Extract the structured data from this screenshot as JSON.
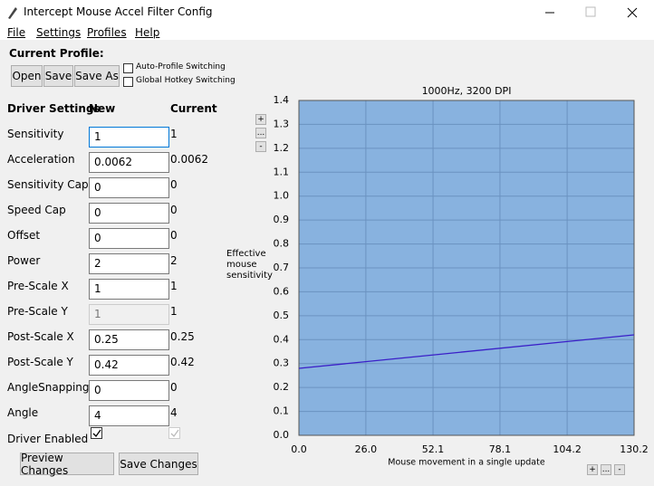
{
  "window": {
    "title": "Intercept Mouse Accel Filter Config"
  },
  "menu": [
    "File",
    "Settings",
    "Profiles",
    "Help"
  ],
  "profile": {
    "label": "Current Profile:",
    "buttons": [
      "Open",
      "Save",
      "Save As"
    ],
    "checkboxes": [
      "Auto-Profile Switching",
      "Global Hotkey Switching"
    ]
  },
  "settings": {
    "headers": [
      "Driver Settings",
      "New",
      "Current"
    ],
    "rows": [
      {
        "label": "Sensitivity",
        "new": "1",
        "current": "1"
      },
      {
        "label": "Acceleration",
        "new": "0.0062",
        "current": "0.0062"
      },
      {
        "label": "Sensitivity Cap",
        "new": "0",
        "current": "0"
      },
      {
        "label": "Speed Cap",
        "new": "0",
        "current": "0"
      },
      {
        "label": "Offset",
        "new": "0",
        "current": "0"
      },
      {
        "label": "Power",
        "new": "2",
        "current": "2"
      },
      {
        "label": "Pre-Scale X",
        "new": "1",
        "current": "1"
      },
      {
        "label": "Pre-Scale Y",
        "new": "1",
        "current": "1"
      },
      {
        "label": "Post-Scale X",
        "new": "0.25",
        "current": "0.25"
      },
      {
        "label": "Post-Scale Y",
        "new": "0.42",
        "current": "0.42"
      },
      {
        "label": "AngleSnapping",
        "new": "0",
        "current": "0"
      },
      {
        "label": "Angle",
        "new": "4",
        "current": "4"
      },
      {
        "label": "Driver Enabled"
      }
    ]
  },
  "actions": [
    "Preview Changes",
    "Save Changes"
  ],
  "zoom_buttons": [
    "+",
    "...",
    "-"
  ],
  "chart": {
    "type": "line",
    "title": "1000Hz, 3200 DPI",
    "y_label": "Effective mouse sensitivity",
    "x_label": "Mouse movement in a single update",
    "x": [
      0,
      130.2
    ],
    "values": [
      0.28,
      0.42
    ],
    "color": "#3a1fc8",
    "xlim": [
      0,
      130.2
    ],
    "ylim": [
      0,
      1.4
    ],
    "xticks": [
      {
        "value": 0,
        "label": "0.0"
      },
      {
        "value": 26,
        "label": "26.0"
      },
      52.1,
      78.1,
      104.2,
      130.2
    ],
    "yticks": [
      {
        "value": 0,
        "label": "0.0"
      },
      0.1,
      0.2,
      0.3,
      0.4,
      0.5,
      0.6,
      0.7,
      0.8,
      0.9,
      {
        "value": 1,
        "label": "1.0"
      },
      1.1,
      1.2,
      1.3,
      1.4
    ],
    "grid": true,
    "background": "#88b2df"
  }
}
